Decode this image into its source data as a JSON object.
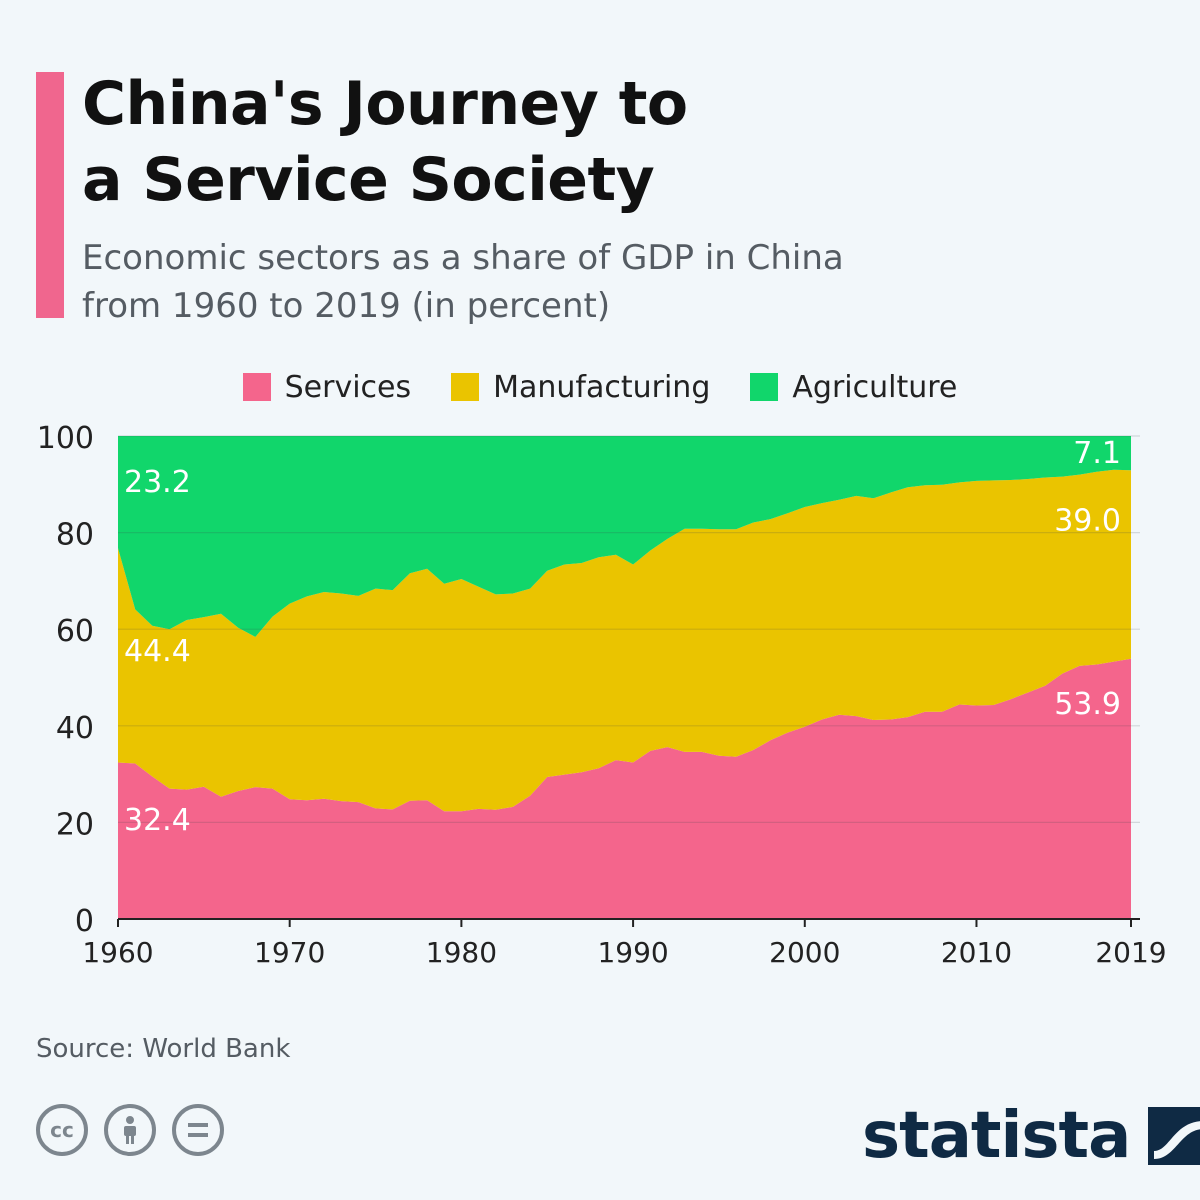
{
  "title_lines": [
    "China's Journey to",
    "a Service Society"
  ],
  "subtitle_lines": [
    "Economic sectors as a share of GDP in China",
    "from 1960 to 2019 (in percent)"
  ],
  "source": "Source: World Bank",
  "brand": "statista",
  "colors": {
    "accent": "#f0668e",
    "services": "#f4658c",
    "manufacturing": "#eac400",
    "agriculture": "#11d66b",
    "background": "#f2f7fa",
    "brand": "#0f2a44"
  },
  "icons": [
    "cc-icon",
    "attribution-icon",
    "no-derivatives-icon",
    "statista-logo-icon"
  ],
  "chart_data": {
    "type": "area",
    "stacked": true,
    "title": "China's Journey to a Service Society",
    "xlabel": "",
    "ylabel": "",
    "ylim": [
      0,
      100
    ],
    "xlim": [
      1960,
      2019
    ],
    "grid": true,
    "legend_position": "top",
    "y_ticks": [
      "0",
      "20",
      "40",
      "60",
      "80",
      "100"
    ],
    "x_ticks": [
      {
        "x": 1960,
        "label": "1960"
      },
      {
        "x": 1970,
        "label": "1970"
      },
      {
        "x": 1980,
        "label": "1980"
      },
      {
        "x": 1990,
        "label": "1990"
      },
      {
        "x": 2000,
        "label": "2000"
      },
      {
        "x": 2010,
        "label": "2010"
      },
      {
        "x": 2019,
        "label": "2019"
      }
    ],
    "x": [
      1960,
      1961,
      1962,
      1963,
      1964,
      1965,
      1966,
      1967,
      1968,
      1969,
      1970,
      1971,
      1972,
      1973,
      1974,
      1975,
      1976,
      1977,
      1978,
      1979,
      1980,
      1981,
      1982,
      1983,
      1984,
      1985,
      1986,
      1987,
      1988,
      1989,
      1990,
      1991,
      1992,
      1993,
      1994,
      1995,
      1996,
      1997,
      1998,
      1999,
      2000,
      2001,
      2002,
      2003,
      2004,
      2005,
      2006,
      2007,
      2008,
      2009,
      2010,
      2011,
      2012,
      2013,
      2014,
      2015,
      2016,
      2017,
      2018,
      2019
    ],
    "series": [
      {
        "name": "Services",
        "values": [
          32.4,
          32.2,
          29.5,
          27.0,
          26.8,
          27.4,
          25.3,
          26.5,
          27.3,
          27.0,
          24.8,
          24.6,
          24.9,
          24.4,
          24.2,
          22.9,
          22.7,
          24.5,
          24.6,
          22.3,
          22.3,
          22.8,
          22.6,
          23.2,
          25.5,
          29.4,
          29.9,
          30.4,
          31.2,
          32.9,
          32.4,
          34.8,
          35.6,
          34.6,
          34.6,
          33.8,
          33.6,
          35.0,
          37.0,
          38.6,
          39.8,
          41.3,
          42.3,
          42.0,
          41.2,
          41.3,
          41.8,
          42.9,
          42.9,
          44.4,
          44.2,
          44.3,
          45.5,
          46.9,
          48.3,
          50.8,
          52.4,
          52.7,
          53.3,
          53.9
        ]
      },
      {
        "name": "Manufacturing",
        "values": [
          44.4,
          31.9,
          31.2,
          33.0,
          35.1,
          35.1,
          37.9,
          33.8,
          31.1,
          35.6,
          40.5,
          42.2,
          42.8,
          43.0,
          42.7,
          45.5,
          45.4,
          47.1,
          47.9,
          47.1,
          48.1,
          46.0,
          44.6,
          44.2,
          42.9,
          42.7,
          43.5,
          43.3,
          43.7,
          42.5,
          41.0,
          41.5,
          43.1,
          46.2,
          46.2,
          46.9,
          47.1,
          47.1,
          45.8,
          45.4,
          45.5,
          44.8,
          44.5,
          45.6,
          45.9,
          47.0,
          47.6,
          46.9,
          47.0,
          46.0,
          46.5,
          46.5,
          45.4,
          44.2,
          43.1,
          40.8,
          39.6,
          39.9,
          39.7,
          39.0
        ]
      },
      {
        "name": "Agriculture",
        "values": [
          23.2,
          35.9,
          39.3,
          40.0,
          38.1,
          37.5,
          36.8,
          39.7,
          41.6,
          37.4,
          34.7,
          33.2,
          32.3,
          32.6,
          33.1,
          31.6,
          31.9,
          28.4,
          27.5,
          30.6,
          29.6,
          31.2,
          32.8,
          32.6,
          31.6,
          27.9,
          26.6,
          26.3,
          25.1,
          24.6,
          26.6,
          23.7,
          21.3,
          19.2,
          19.2,
          19.3,
          19.3,
          17.9,
          17.2,
          16.0,
          14.7,
          13.9,
          13.2,
          12.4,
          12.9,
          11.7,
          10.6,
          10.2,
          10.1,
          9.6,
          9.3,
          9.2,
          9.1,
          8.9,
          8.6,
          8.4,
          8.0,
          7.4,
          7.0,
          7.1
        ]
      }
    ],
    "annotations": [
      {
        "series": "Agriculture",
        "x": 1960,
        "label": "23.2"
      },
      {
        "series": "Manufacturing",
        "x": 1960,
        "label": "44.4"
      },
      {
        "series": "Services",
        "x": 1960,
        "label": "32.4"
      },
      {
        "series": "Agriculture",
        "x": 2019,
        "label": "7.1"
      },
      {
        "series": "Manufacturing",
        "x": 2019,
        "label": "39.0"
      },
      {
        "series": "Services",
        "x": 2019,
        "label": "53.9"
      }
    ]
  }
}
